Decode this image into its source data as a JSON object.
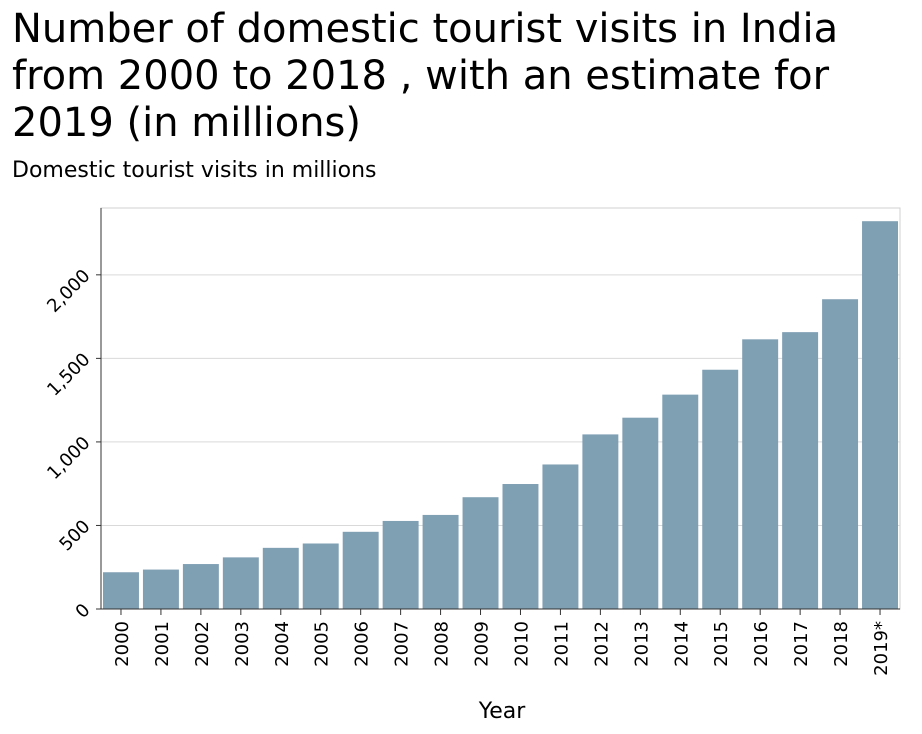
{
  "chart_data": {
    "type": "bar",
    "title": "Number of domestic tourist visits in India from 2000 to 2018 , with an estimate for 2019 (in millions)",
    "ylabel": "Domestic tourist visits in millions",
    "xlabel": "Year",
    "categories": [
      "2000",
      "2001",
      "2002",
      "2003",
      "2004",
      "2005",
      "2006",
      "2007",
      "2008",
      "2009",
      "2010",
      "2011",
      "2012",
      "2013",
      "2014",
      "2015",
      "2016",
      "2017",
      "2018",
      "2019*"
    ],
    "values": [
      220,
      236,
      269,
      309,
      366,
      392,
      462,
      527,
      563,
      669,
      748,
      865,
      1045,
      1145,
      1283,
      1432,
      1614,
      1657,
      1854,
      2321
    ],
    "ylim": [
      0,
      2400
    ],
    "yticks": [
      0,
      500,
      1000,
      1500,
      2000
    ],
    "ytick_labels": [
      "0",
      "500",
      "1,000",
      "1,500",
      "2,000"
    ],
    "grid": true,
    "bar_color": "#7f9fb3"
  }
}
